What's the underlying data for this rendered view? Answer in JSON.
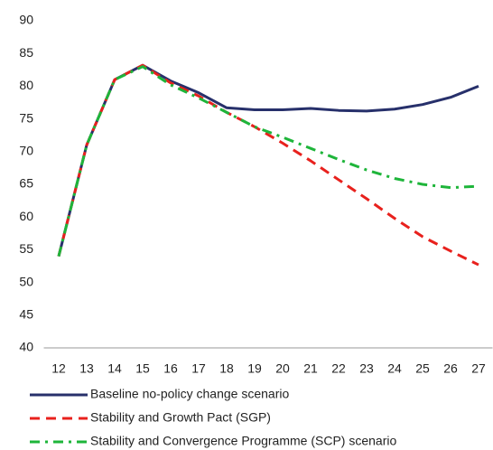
{
  "chart_data": {
    "type": "line",
    "categories": [
      "12",
      "13",
      "14",
      "15",
      "16",
      "17",
      "18",
      "19",
      "20",
      "21",
      "22",
      "23",
      "24",
      "25",
      "26",
      "27"
    ],
    "ylim": [
      40,
      90
    ],
    "yticks": [
      40,
      45,
      50,
      55,
      60,
      65,
      70,
      75,
      80,
      85,
      90
    ],
    "grid": false,
    "legend": "bottom",
    "series": [
      {
        "name": "Baseline no-policy change scenario",
        "color": "#27306b",
        "style": "solid",
        "values": [
          54,
          71,
          81,
          83.2,
          80.8,
          79,
          76.7,
          76.4,
          76.4,
          76.6,
          76.3,
          76.2,
          76.5,
          77.2,
          78.3,
          80
        ]
      },
      {
        "name": "Stability and Growth Pact (SGP)",
        "color": "#e8211d",
        "style": "dashed",
        "values": [
          54,
          71,
          81,
          83.2,
          80.5,
          78.5,
          76,
          73.8,
          71.3,
          68.6,
          65.7,
          62.8,
          59.8,
          57,
          54.8,
          52.7
        ]
      },
      {
        "name": "Stability and Convergence Programme (SCP) scenario",
        "color": "#1eb53a",
        "style": "dashdot",
        "values": [
          54,
          71,
          81,
          83,
          80.2,
          78.2,
          76,
          73.8,
          72.2,
          70.5,
          68.8,
          67.2,
          65.9,
          65,
          64.5,
          64.7
        ]
      }
    ]
  }
}
